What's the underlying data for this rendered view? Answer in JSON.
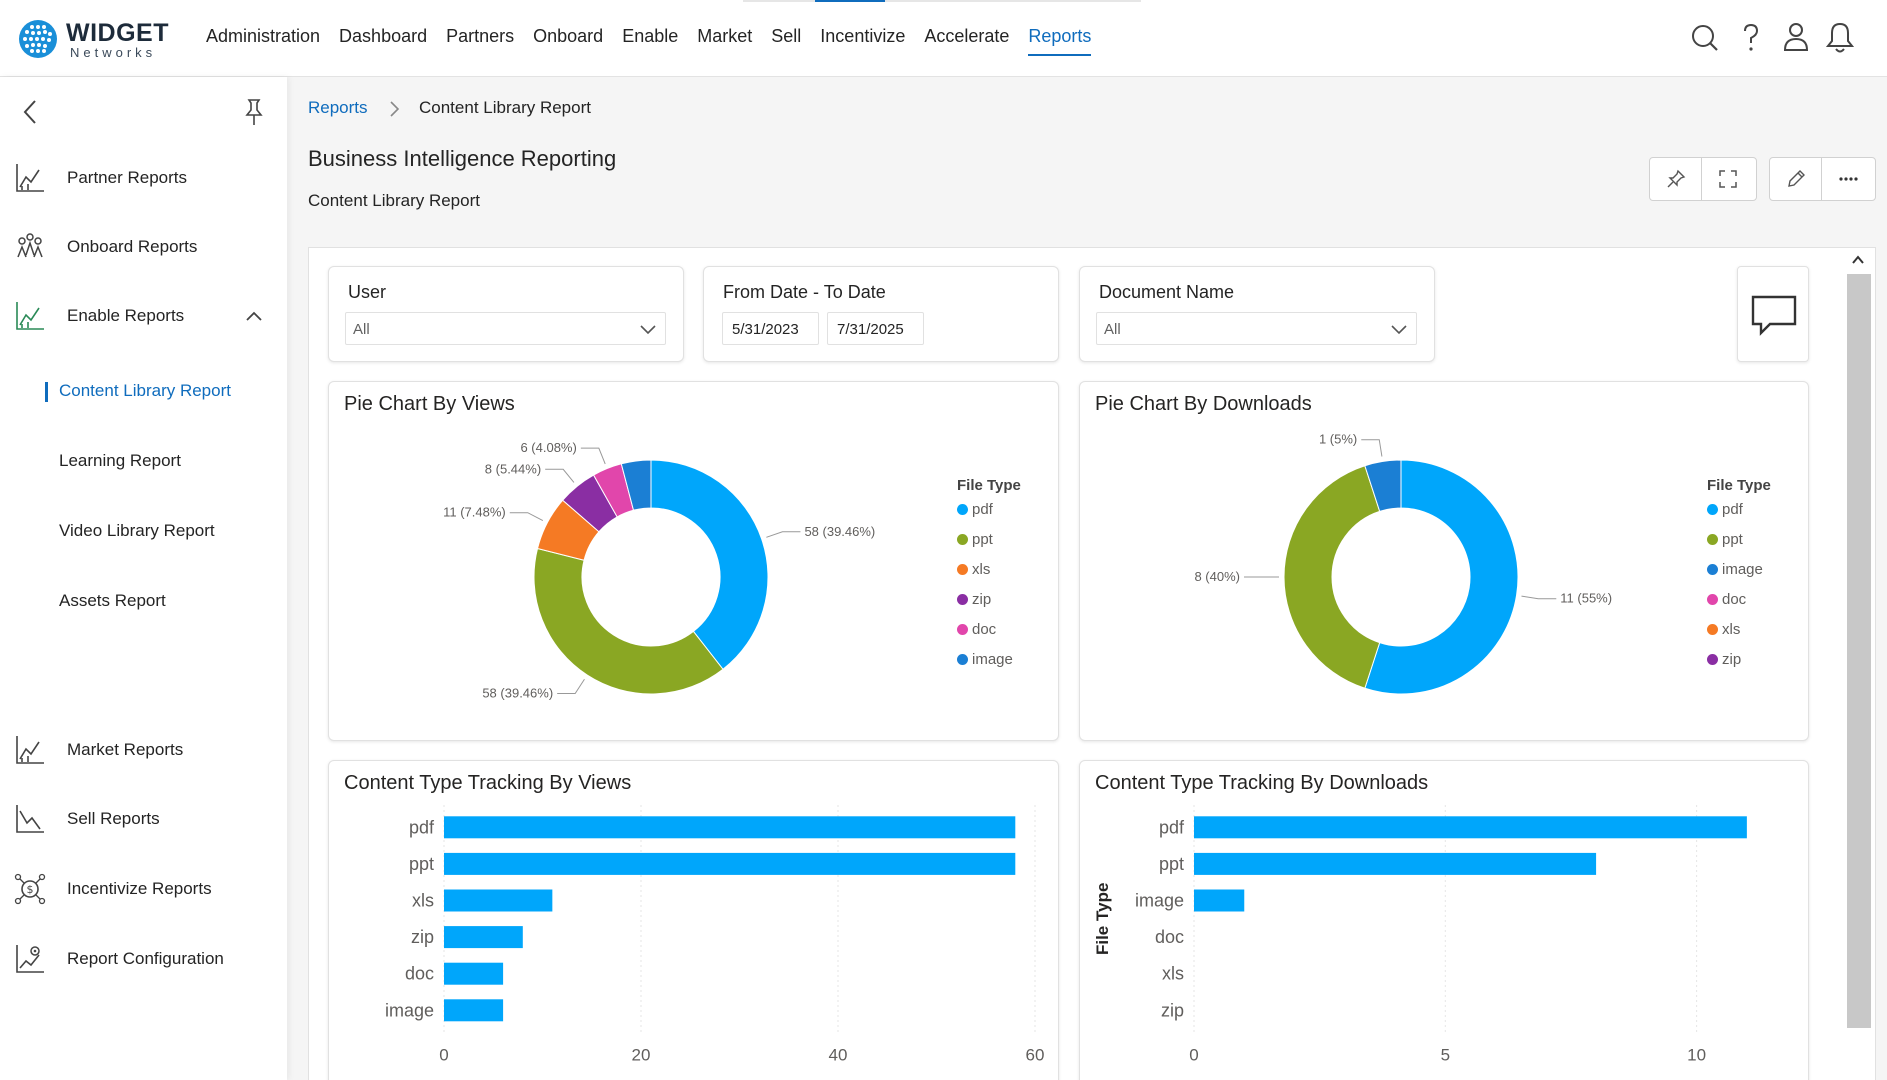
{
  "app": {
    "brand": "WIDGET",
    "brand_sub": "Networks"
  },
  "nav": [
    "Administration",
    "Dashboard",
    "Partners",
    "Onboard",
    "Enable",
    "Market",
    "Sell",
    "Incentivize",
    "Accelerate",
    "Reports"
  ],
  "nav_active": "Reports",
  "sidebar": {
    "items": [
      {
        "label": "Partner Reports",
        "icon": "chart-icon"
      },
      {
        "label": "Onboard Reports",
        "icon": "onboard-icon"
      },
      {
        "label": "Enable Reports",
        "icon": "chart-icon"
      },
      {
        "label": "Market Reports",
        "icon": "chart-icon"
      },
      {
        "label": "Sell Reports",
        "icon": "chart-icon"
      },
      {
        "label": "Incentivize Reports",
        "icon": "money-icon"
      },
      {
        "label": "Report Configuration",
        "icon": "config-icon"
      }
    ],
    "sub_items": [
      "Content Library Report",
      "Learning Report",
      "Video Library Report",
      "Assets Report"
    ],
    "active_sub": "Content Library Report"
  },
  "breadcrumb": {
    "root": "Reports",
    "current": "Content Library Report"
  },
  "page": {
    "title": "Business Intelligence Reporting",
    "subtitle": "Content Library Report"
  },
  "filters": {
    "user": {
      "label": "User",
      "value": "All"
    },
    "date": {
      "label": "From Date - To Date",
      "from": "5/31/2023",
      "to": "7/31/2025"
    },
    "document": {
      "label": "Document Name",
      "value": "All"
    }
  },
  "colors": {
    "accent": "#0f6cbd",
    "pdf": "#00a6fb",
    "ppt": "#8aa723",
    "xls": "#f57a24",
    "zip": "#8a2ea3",
    "doc": "#e146ab",
    "image": "#1b7fd4"
  },
  "chart_data": [
    {
      "type": "pie",
      "title": "Pie Chart By Views",
      "legend_title": "File Type",
      "categories": [
        "pdf",
        "ppt",
        "xls",
        "zip",
        "doc",
        "image"
      ],
      "values": [
        58,
        58,
        11,
        8,
        6,
        6
      ],
      "labels": [
        "58 (39.46%)",
        "58 (39.46%)",
        "11 (7.48%)",
        "8 (5.44%)",
        "6 (4.08%)",
        ""
      ]
    },
    {
      "type": "pie",
      "title": "Pie Chart By Downloads",
      "legend_title": "File Type",
      "categories": [
        "pdf",
        "ppt",
        "image",
        "doc",
        "xls",
        "zip"
      ],
      "values": [
        11,
        8,
        1,
        0,
        0,
        0
      ],
      "labels": [
        "11 (55%)",
        "8 (40%)",
        "1 (5%)",
        "",
        "",
        ""
      ]
    },
    {
      "type": "bar",
      "title": "Content Type Tracking By Views",
      "orientation": "horizontal",
      "categories": [
        "pdf",
        "ppt",
        "xls",
        "zip",
        "doc",
        "image"
      ],
      "values": [
        58,
        58,
        11,
        8,
        6,
        6
      ],
      "xlim": [
        0,
        60
      ],
      "xticks": [
        "0",
        "20",
        "40",
        "60"
      ],
      "ylabel": ""
    },
    {
      "type": "bar",
      "title": "Content Type Tracking By Downloads",
      "orientation": "horizontal",
      "categories": [
        "pdf",
        "ppt",
        "image",
        "doc",
        "xls",
        "zip"
      ],
      "values": [
        11,
        8,
        1,
        0,
        0,
        0
      ],
      "xlim": [
        0,
        11.5
      ],
      "xticks": [
        "0",
        "5",
        "10"
      ],
      "ylabel": "File Type"
    }
  ]
}
